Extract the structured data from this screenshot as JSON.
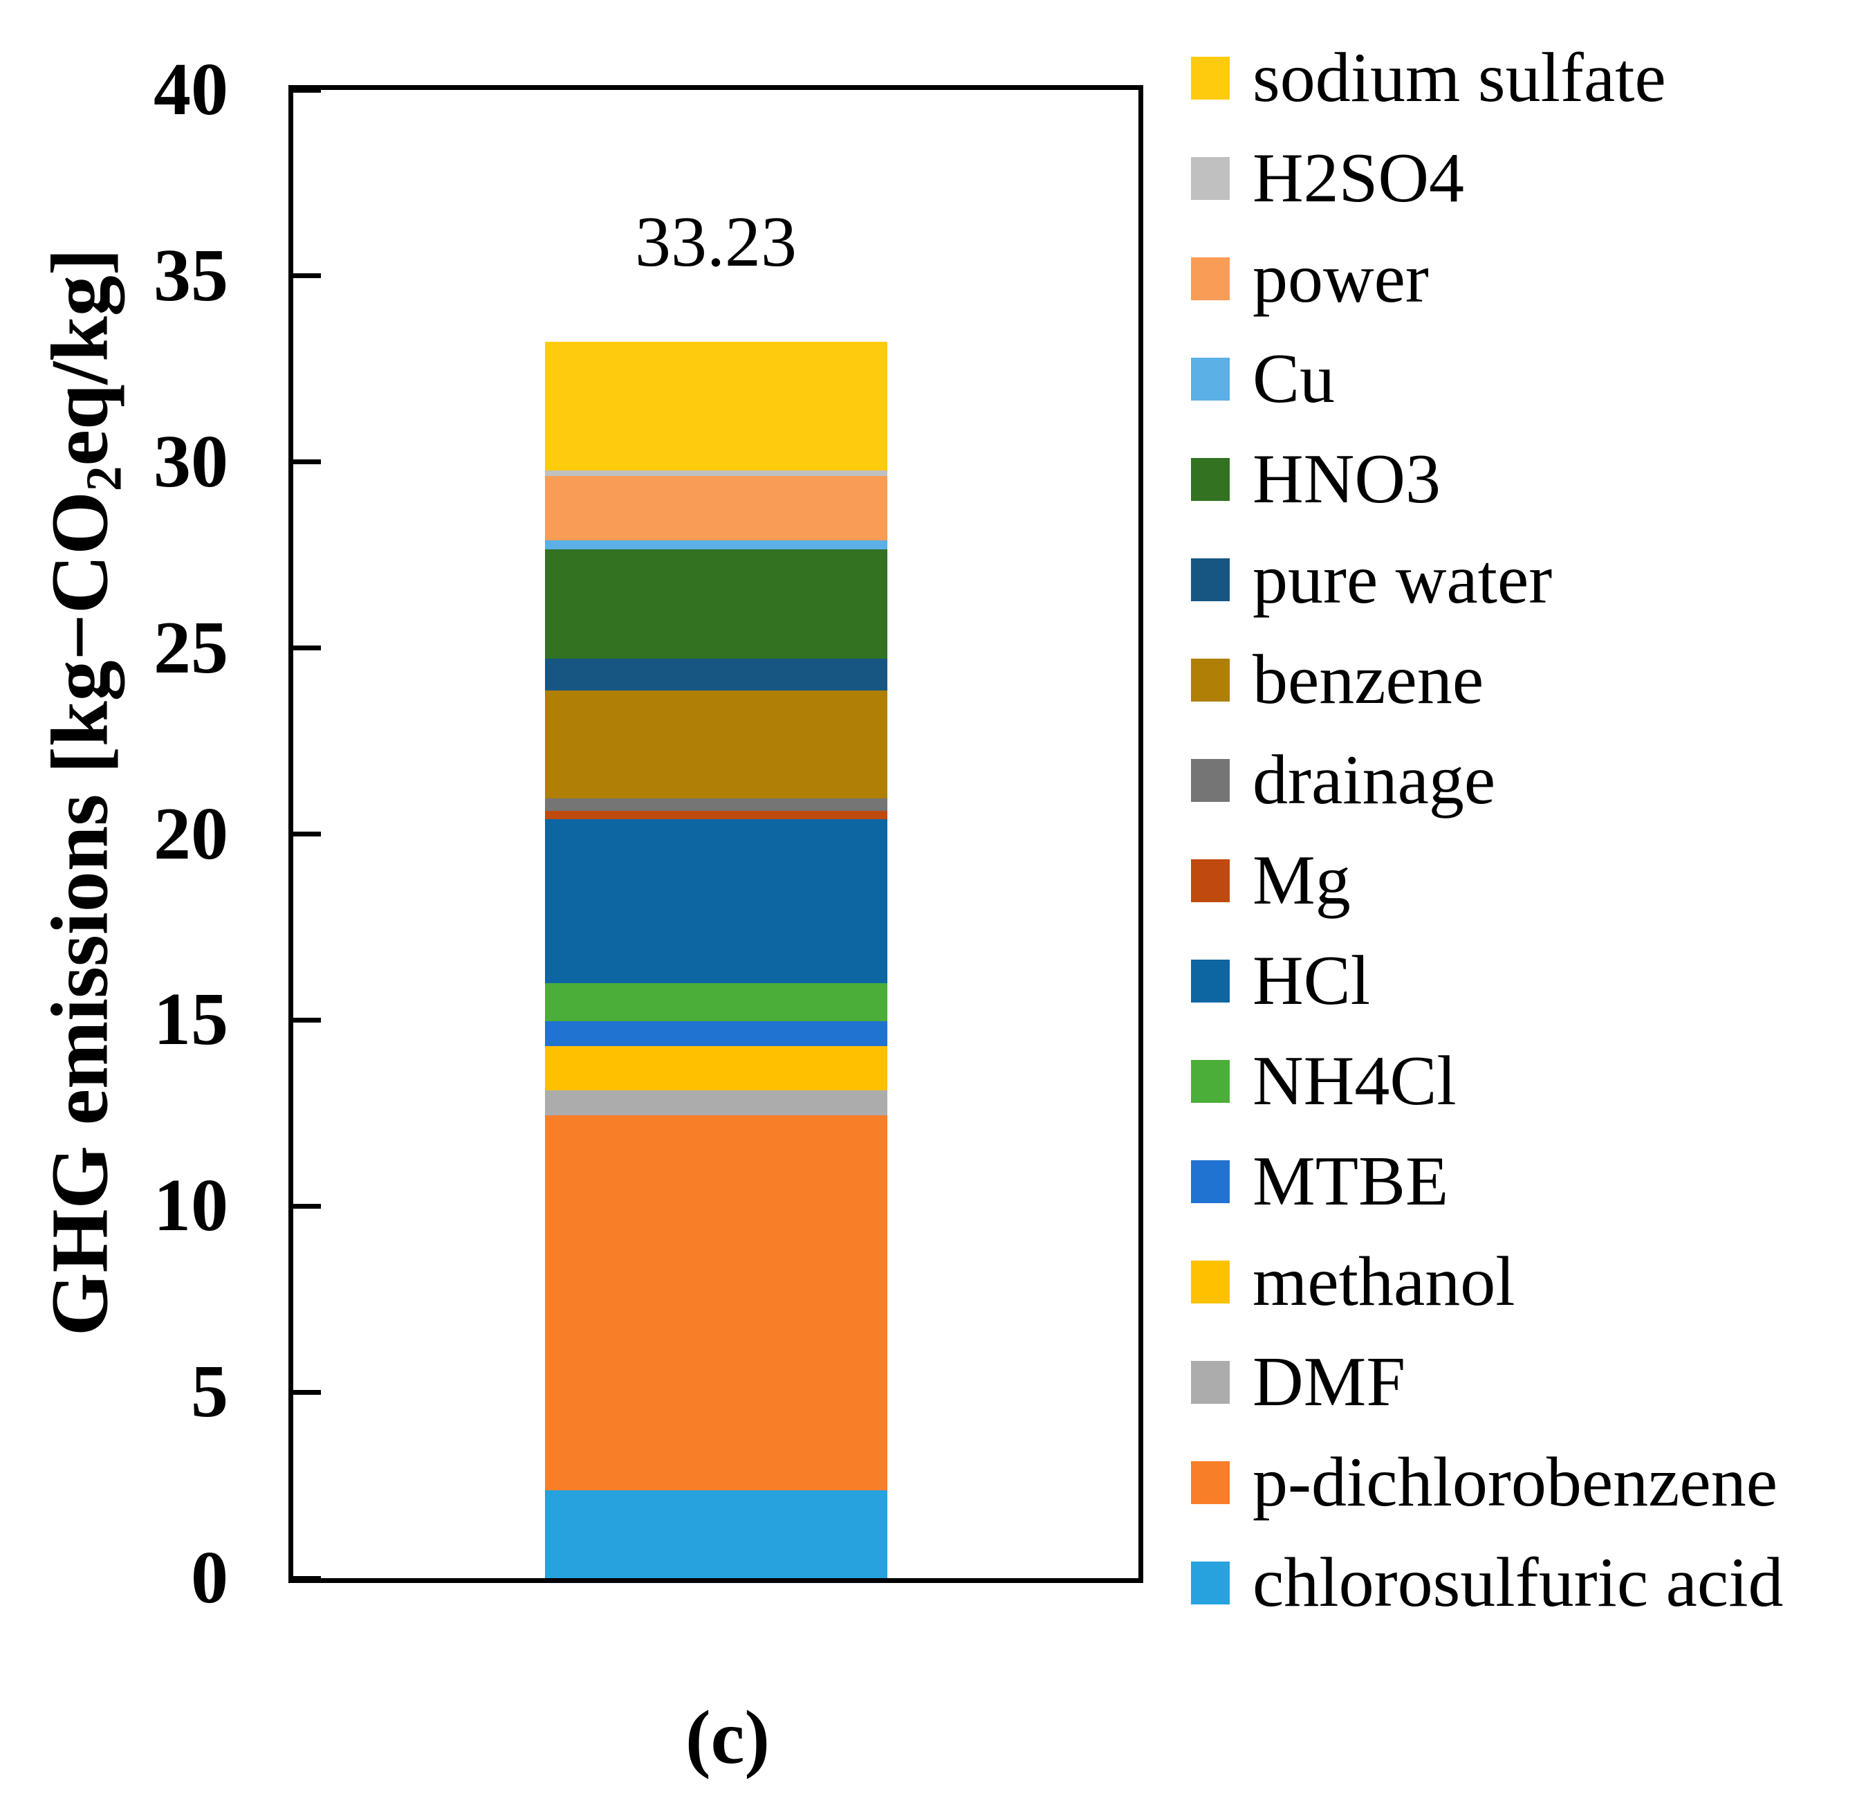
{
  "figure": {
    "caption": "(c)",
    "value_label": "33.23"
  },
  "axis": {
    "ylabel_prefix": "GHG emissions [kg−CO",
    "ylabel_sub": "2",
    "ylabel_suffix": "eq/kg]",
    "yticks": [
      0,
      5,
      10,
      15,
      20,
      25,
      30,
      35,
      40
    ]
  },
  "chart_data": {
    "type": "bar",
    "stacked": true,
    "title": "",
    "xlabel": "",
    "ylabel": "GHG emissions [kg-CO2eq/kg]",
    "ylim": [
      0,
      40
    ],
    "ytick_step": 5,
    "grid": false,
    "legend_position": "right",
    "categories": [
      ""
    ],
    "bar_total": 33.23,
    "bar_total_label": "33.23",
    "series_note": "stack order is bottom-to-top; legend shows reverse (top-to-bottom)",
    "series": [
      {
        "name": "chlorosulfuric acid",
        "value": 2.36,
        "color": "#27A2DE"
      },
      {
        "name": "p-dichlorobenzene",
        "value": 10.07,
        "color": "#F97E28"
      },
      {
        "name": "DMF",
        "value": 0.67,
        "color": "#ACACAC"
      },
      {
        "name": "methanol",
        "value": 1.2,
        "color": "#FFC000"
      },
      {
        "name": "MTBE",
        "value": 0.67,
        "color": "#2173D1"
      },
      {
        "name": "NH4Cl",
        "value": 1.03,
        "color": "#4AAE39"
      },
      {
        "name": "HCl",
        "value": 4.4,
        "color": "#0D65A2"
      },
      {
        "name": "Mg",
        "value": 0.22,
        "color": "#C04A0D"
      },
      {
        "name": "drainage",
        "value": 0.33,
        "color": "#757575"
      },
      {
        "name": "benzene",
        "value": 2.9,
        "color": "#B07F05"
      },
      {
        "name": "pure water",
        "value": 0.87,
        "color": "#175583"
      },
      {
        "name": "HNO3",
        "value": 2.94,
        "color": "#327221"
      },
      {
        "name": "Cu",
        "value": 0.24,
        "color": "#5BB0E6"
      },
      {
        "name": "power",
        "value": 1.72,
        "color": "#F99C56"
      },
      {
        "name": "H2SO4",
        "value": 0.15,
        "color": "#C0C0C0"
      },
      {
        "name": "sodium sulfate",
        "value": 3.46,
        "color": "#FFCB0D"
      }
    ]
  }
}
